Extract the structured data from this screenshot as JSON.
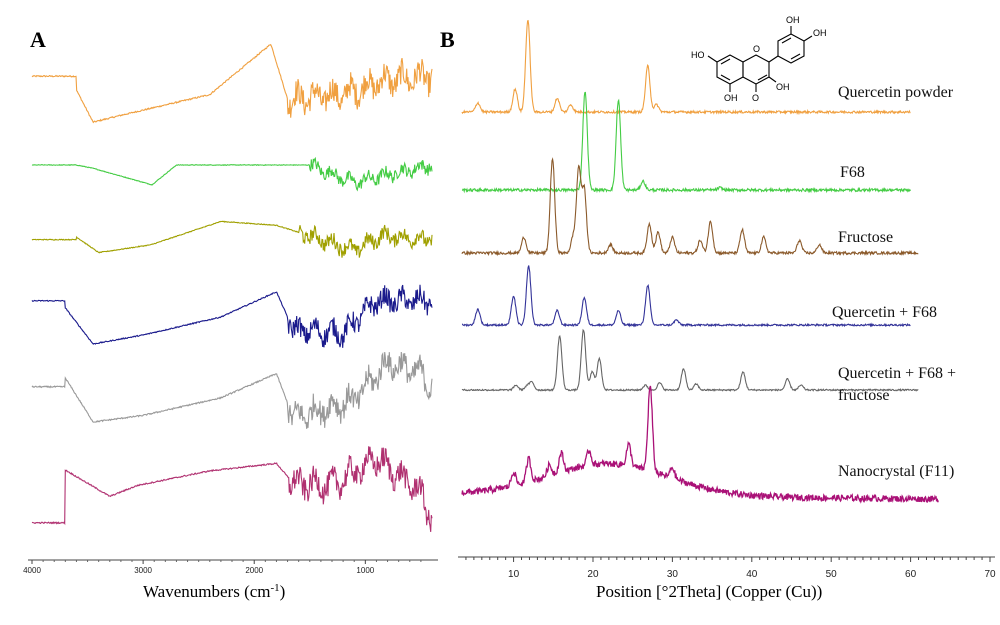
{
  "chart_data": [
    {
      "panel": "A",
      "type": "line",
      "xlabel": "Wavenumbers (cm",
      "xlabel_sup": "-1",
      "xlabel_close": ")",
      "xlim": [
        4000,
        400
      ],
      "x_ticks": [
        "4000",
        "3000",
        "2000",
        "1000"
      ],
      "grid": false,
      "series": [
        {
          "color": "#f0a040",
          "order": 1,
          "bands": [
            [
              3600,
              0
            ],
            [
              3450,
              -0.7
            ],
            [
              3200,
              -0.55
            ],
            [
              2400,
              -0.1
            ],
            [
              1850,
              1.0
            ],
            [
              1700,
              -0.2
            ],
            [
              1200,
              -0.1
            ],
            [
              850,
              0.2
            ],
            [
              400,
              0.3
            ]
          ],
          "noise_start": 1700
        },
        {
          "color": "#44cc44",
          "order": 2,
          "bands": [
            [
              3600,
              0
            ],
            [
              3450,
              -0.15
            ],
            [
              2920,
              -0.9
            ],
            [
              2700,
              0
            ],
            [
              1500,
              0
            ],
            [
              1100,
              -0.8
            ],
            [
              850,
              -0.5
            ],
            [
              400,
              0
            ]
          ],
          "noise_start": 1500
        },
        {
          "color": "#a0a000",
          "order": 3,
          "bands": [
            [
              3600,
              0
            ],
            [
              3400,
              -0.6
            ],
            [
              2930,
              -0.3
            ],
            [
              2300,
              0.6
            ],
            [
              1800,
              0.45
            ],
            [
              1100,
              -0.5
            ],
            [
              850,
              0.05
            ],
            [
              400,
              -0.1
            ]
          ],
          "noise_start": 1600
        },
        {
          "color": "#1a1a8c",
          "order": 4,
          "bands": [
            [
              3700,
              0
            ],
            [
              3450,
              -1.0
            ],
            [
              3000,
              -0.75
            ],
            [
              2300,
              -0.25
            ],
            [
              1800,
              0.45
            ],
            [
              1650,
              -0.6
            ],
            [
              1200,
              -0.7
            ],
            [
              900,
              0.2
            ],
            [
              400,
              0.2
            ]
          ],
          "noise_start": 1700
        },
        {
          "color": "#999999",
          "order": 5,
          "bands": [
            [
              3700,
              0
            ],
            [
              3450,
              -1.0
            ],
            [
              3000,
              -0.85
            ],
            [
              2300,
              -0.45
            ],
            [
              1800,
              0.1
            ],
            [
              1650,
              -0.9
            ],
            [
              1100,
              -0.5
            ],
            [
              800,
              0.35
            ],
            [
              500,
              0.1
            ],
            [
              400,
              -0.2
            ]
          ],
          "noise_start": 1700
        },
        {
          "color": "#b03070",
          "order": 6,
          "bands": [
            [
              3700,
              0
            ],
            [
              3300,
              -0.6
            ],
            [
              3050,
              -0.35
            ],
            [
              2400,
              -0.02
            ],
            [
              1800,
              0.15
            ],
            [
              1650,
              -0.3
            ],
            [
              1300,
              -0.35
            ],
            [
              900,
              0.25
            ],
            [
              500,
              -0.5
            ],
            [
              400,
              -1.2
            ]
          ],
          "noise_start": 1700
        }
      ]
    },
    {
      "panel": "B",
      "type": "line",
      "xlabel": "Position [°2Theta] (Copper (Cu))",
      "xlim": [
        3,
        70
      ],
      "x_ticks": [
        10,
        20,
        30,
        40,
        50,
        60,
        70
      ],
      "grid": false,
      "series": [
        {
          "name": "Quercetin powder",
          "color": "#f0a040",
          "end": 60,
          "peaks": [
            [
              5.5,
              0.1
            ],
            [
              10.2,
              0.25
            ],
            [
              11.8,
              1.0
            ],
            [
              15.5,
              0.15
            ],
            [
              17.2,
              0.08
            ],
            [
              26.9,
              0.5
            ],
            [
              28.0,
              0.08
            ]
          ]
        },
        {
          "name": "F68",
          "color": "#44cc44",
          "end": 60,
          "peaks": [
            [
              19.0,
              0.9
            ],
            [
              23.2,
              0.82
            ],
            [
              26.3,
              0.08
            ],
            [
              36.0,
              0.02
            ]
          ]
        },
        {
          "name": "Fructose",
          "color": "#8b5a2b",
          "end": 61,
          "peaks": [
            [
              11.3,
              0.15
            ],
            [
              14.9,
              0.9
            ],
            [
              17.5,
              0.15
            ],
            [
              18.2,
              0.8
            ],
            [
              18.9,
              0.6
            ],
            [
              22.2,
              0.08
            ],
            [
              27.1,
              0.28
            ],
            [
              28.2,
              0.2
            ],
            [
              30.0,
              0.15
            ],
            [
              33.5,
              0.12
            ],
            [
              34.8,
              0.3
            ],
            [
              38.8,
              0.22
            ],
            [
              41.5,
              0.15
            ],
            [
              46.0,
              0.12
            ],
            [
              48.5,
              0.08
            ]
          ]
        },
        {
          "name": "Quercetin + F68",
          "color": "#333399",
          "end": 60,
          "peaks": [
            [
              5.5,
              0.22
            ],
            [
              10.0,
              0.4
            ],
            [
              11.9,
              0.82
            ],
            [
              15.5,
              0.2
            ],
            [
              18.9,
              0.38
            ],
            [
              23.2,
              0.2
            ],
            [
              26.9,
              0.55
            ],
            [
              30.5,
              0.07
            ]
          ]
        },
        {
          "name": "Quercetin + F68 + fructose",
          "name_line1": "Quercetin + F68 +",
          "name_line2": "fructose",
          "color": "#666666",
          "end": 61,
          "peaks": [
            [
              10.3,
              0.08
            ],
            [
              11.7,
              0.07
            ],
            [
              12.3,
              0.13
            ],
            [
              15.8,
              0.9
            ],
            [
              18.8,
              1.0
            ],
            [
              19.9,
              0.3
            ],
            [
              20.8,
              0.52
            ],
            [
              26.6,
              0.08
            ],
            [
              28.4,
              0.12
            ],
            [
              31.4,
              0.35
            ],
            [
              33.0,
              0.1
            ],
            [
              38.9,
              0.3
            ],
            [
              44.5,
              0.18
            ],
            [
              46.2,
              0.08
            ]
          ]
        },
        {
          "name": "Nanocrystal (F11)",
          "color": "#aa1177",
          "end": 63.5,
          "peaks": [
            [
              10.0,
              0.13
            ],
            [
              11.9,
              0.22
            ],
            [
              14.5,
              0.1
            ],
            [
              16.0,
              0.18
            ],
            [
              19.5,
              0.14
            ],
            [
              24.5,
              0.2
            ],
            [
              27.2,
              0.8
            ],
            [
              30.0,
              0.1
            ]
          ],
          "halo": [
            22,
            7.5,
            0.3
          ]
        }
      ]
    }
  ],
  "labels": {
    "panel_a": "A",
    "panel_b": "B"
  },
  "structure_labels": {
    "oh_1": "OH",
    "oh_2": "OH",
    "oh_3": "HO",
    "oh_4": "OH",
    "oh_5": "OH",
    "o_ring": "O",
    "o_carbonyl": "O"
  }
}
